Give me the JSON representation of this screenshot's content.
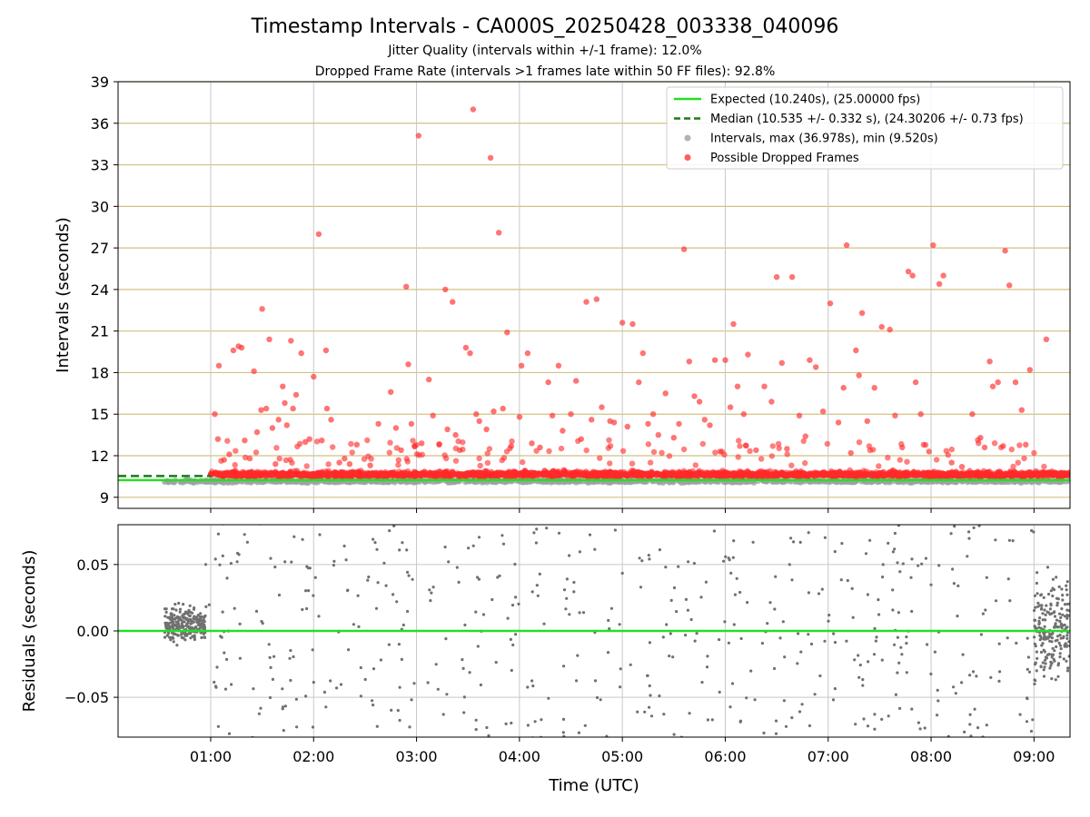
{
  "chart_data": [
    {
      "type": "scatter",
      "panel": "top",
      "title": "Timestamp Intervals - CA000S_20250428_003338_040096",
      "subtitle_1": "Jitter Quality (intervals within +/-1 frame): 12.0%",
      "subtitle_2": "Dropped Frame Rate (intervals >1 frames late within 50 FF files): 92.8%",
      "ylabel": "Intervals (seconds)",
      "xlim_hours": [
        0.1,
        9.35
      ],
      "ylim": [
        8.2,
        39
      ],
      "y_ticks": [
        9,
        12,
        15,
        18,
        21,
        24,
        27,
        30,
        33,
        36,
        39
      ],
      "y_tick_labels": [
        "9",
        "12",
        "15",
        "18",
        "21",
        "24",
        "27",
        "30",
        "33",
        "36",
        "39"
      ],
      "horizontal_grid": true,
      "horizontal_grid_color": "#d4c080",
      "vertical_grid": true,
      "legend_position": "top-right",
      "legend": [
        {
          "label": "Expected (10.240s), (25.00000 fps)",
          "kind": "line",
          "color": "#22e022"
        },
        {
          "label": "Median (10.535 +/- 0.332 s), (24.30206 +/- 0.73 fps)",
          "kind": "dashed",
          "color": "#1a7a1a"
        },
        {
          "label": "Intervals, max (36.978s), min (9.520s)",
          "kind": "dot",
          "color": "#a0a0a0"
        },
        {
          "label": "Possible Dropped Frames",
          "kind": "dot",
          "color": "#ff3333"
        }
      ],
      "expected_interval": 10.24,
      "median_interval": 10.535,
      "median_line_end_hours": 1.0,
      "dropped_frames_outliers": [
        [
          1.04,
          15.0
        ],
        [
          1.08,
          18.5
        ],
        [
          1.07,
          13.2
        ],
        [
          1.13,
          11.7
        ],
        [
          1.18,
          12.1
        ],
        [
          1.22,
          19.6
        ],
        [
          1.27,
          19.9
        ],
        [
          1.3,
          19.8
        ],
        [
          1.33,
          13.1
        ],
        [
          1.38,
          11.8
        ],
        [
          1.42,
          18.1
        ],
        [
          1.45,
          13.7
        ],
        [
          1.49,
          15.3
        ],
        [
          1.5,
          22.6
        ],
        [
          1.54,
          15.4
        ],
        [
          1.57,
          20.4
        ],
        [
          1.6,
          14.0
        ],
        [
          1.63,
          11.4
        ],
        [
          1.66,
          14.6
        ],
        [
          1.7,
          17.0
        ],
        [
          1.72,
          15.8
        ],
        [
          1.74,
          14.2
        ],
        [
          1.78,
          20.3
        ],
        [
          1.8,
          15.4
        ],
        [
          1.83,
          16.4
        ],
        [
          1.88,
          19.4
        ],
        [
          1.92,
          13.0
        ],
        [
          1.96,
          13.2
        ],
        [
          2.0,
          17.7
        ],
        [
          2.05,
          28.0
        ],
        [
          2.08,
          13.1
        ],
        [
          2.12,
          19.6
        ],
        [
          2.13,
          15.4
        ],
        [
          2.17,
          14.6
        ],
        [
          2.25,
          11.5
        ],
        [
          2.3,
          11.8
        ],
        [
          2.35,
          11.4
        ],
        [
          2.42,
          12.8
        ],
        [
          2.55,
          11.3
        ],
        [
          2.63,
          14.3
        ],
        [
          2.75,
          16.6
        ],
        [
          2.8,
          14.0
        ],
        [
          2.85,
          12.4
        ],
        [
          2.9,
          24.2
        ],
        [
          2.92,
          18.6
        ],
        [
          2.95,
          14.3
        ],
        [
          2.98,
          12.7
        ],
        [
          3.02,
          35.1
        ],
        [
          3.05,
          12.9
        ],
        [
          3.12,
          17.5
        ],
        [
          3.16,
          14.9
        ],
        [
          3.22,
          12.8
        ],
        [
          3.28,
          24.0
        ],
        [
          3.3,
          13.9
        ],
        [
          3.35,
          23.1
        ],
        [
          3.38,
          13.5
        ],
        [
          3.42,
          12.4
        ],
        [
          3.48,
          19.8
        ],
        [
          3.52,
          19.4
        ],
        [
          3.55,
          37.0
        ],
        [
          3.58,
          15.0
        ],
        [
          3.61,
          14.5
        ],
        [
          3.68,
          13.9
        ],
        [
          3.72,
          33.5
        ],
        [
          3.75,
          15.2
        ],
        [
          3.8,
          28.1
        ],
        [
          3.84,
          15.4
        ],
        [
          3.88,
          20.9
        ],
        [
          3.92,
          12.7
        ],
        [
          4.0,
          14.8
        ],
        [
          4.02,
          18.5
        ],
        [
          4.08,
          19.4
        ],
        [
          4.12,
          12.9
        ],
        [
          4.2,
          12.6
        ],
        [
          4.28,
          17.3
        ],
        [
          4.32,
          14.9
        ],
        [
          4.38,
          18.5
        ],
        [
          4.42,
          13.8
        ],
        [
          4.5,
          15.0
        ],
        [
          4.55,
          17.4
        ],
        [
          4.6,
          13.2
        ],
        [
          4.65,
          23.1
        ],
        [
          4.7,
          14.6
        ],
        [
          4.75,
          23.3
        ],
        [
          4.8,
          15.5
        ],
        [
          4.88,
          14.5
        ],
        [
          4.92,
          14.4
        ],
        [
          5.0,
          21.6
        ],
        [
          5.05,
          14.1
        ],
        [
          5.1,
          21.5
        ],
        [
          5.16,
          17.3
        ],
        [
          5.2,
          19.4
        ],
        [
          5.25,
          14.3
        ],
        [
          5.3,
          15.0
        ],
        [
          5.35,
          13.5
        ],
        [
          5.42,
          16.5
        ],
        [
          5.5,
          13.3
        ],
        [
          5.55,
          14.3
        ],
        [
          5.6,
          26.9
        ],
        [
          5.65,
          18.8
        ],
        [
          5.7,
          16.3
        ],
        [
          5.75,
          15.9
        ],
        [
          5.8,
          14.6
        ],
        [
          5.85,
          14.2
        ],
        [
          5.9,
          18.9
        ],
        [
          5.95,
          12.3
        ],
        [
          6.0,
          18.9
        ],
        [
          6.05,
          15.5
        ],
        [
          6.08,
          21.5
        ],
        [
          6.12,
          17.0
        ],
        [
          6.18,
          15.0
        ],
        [
          6.22,
          19.3
        ],
        [
          6.3,
          12.4
        ],
        [
          6.38,
          17.0
        ],
        [
          6.45,
          15.9
        ],
        [
          6.5,
          24.9
        ],
        [
          6.55,
          18.7
        ],
        [
          6.6,
          12.5
        ],
        [
          6.65,
          24.9
        ],
        [
          6.72,
          14.9
        ],
        [
          6.78,
          13.4
        ],
        [
          6.82,
          18.9
        ],
        [
          6.88,
          18.4
        ],
        [
          6.95,
          15.2
        ],
        [
          7.02,
          23.0
        ],
        [
          7.1,
          14.4
        ],
        [
          7.15,
          16.9
        ],
        [
          7.18,
          27.2
        ],
        [
          7.22,
          12.2
        ],
        [
          7.27,
          19.6
        ],
        [
          7.3,
          17.8
        ],
        [
          7.33,
          22.3
        ],
        [
          7.38,
          14.5
        ],
        [
          7.45,
          16.9
        ],
        [
          7.52,
          21.3
        ],
        [
          7.6,
          21.1
        ],
        [
          7.65,
          14.9
        ],
        [
          7.72,
          12.6
        ],
        [
          7.78,
          25.3
        ],
        [
          7.82,
          25.0
        ],
        [
          7.85,
          17.3
        ],
        [
          7.9,
          15.0
        ],
        [
          7.98,
          12.3
        ],
        [
          8.02,
          27.2
        ],
        [
          8.08,
          24.4
        ],
        [
          8.12,
          25.0
        ],
        [
          8.2,
          11.5
        ],
        [
          8.3,
          11.2
        ],
        [
          8.4,
          15.0
        ],
        [
          8.48,
          13.3
        ],
        [
          8.52,
          12.6
        ],
        [
          8.57,
          18.8
        ],
        [
          8.6,
          17.0
        ],
        [
          8.65,
          17.3
        ],
        [
          8.7,
          12.7
        ],
        [
          8.72,
          26.8
        ],
        [
          8.76,
          24.3
        ],
        [
          8.82,
          17.3
        ],
        [
          8.88,
          15.3
        ],
        [
          8.92,
          12.8
        ],
        [
          8.96,
          18.2
        ],
        [
          9.12,
          20.4
        ]
      ]
    },
    {
      "type": "scatter",
      "panel": "bottom",
      "ylabel": "Residuals (seconds)",
      "xlabel": "Time (UTC)",
      "xlim_hours": [
        0.1,
        9.35
      ],
      "ylim": [
        -0.08,
        0.08
      ],
      "y_ticks": [
        -0.05,
        0.0,
        0.05
      ],
      "y_tick_labels": [
        "−0.05",
        "0.00",
        "0.05"
      ],
      "x_ticks_hours": [
        1,
        2,
        3,
        4,
        5,
        6,
        7,
        8,
        9
      ],
      "x_tick_labels": [
        "01:00",
        "02:00",
        "03:00",
        "04:00",
        "05:00",
        "06:00",
        "07:00",
        "08:00",
        "09:00"
      ],
      "zero_line_color": "#22e022",
      "point_color": "#707070",
      "grid": true
    }
  ]
}
